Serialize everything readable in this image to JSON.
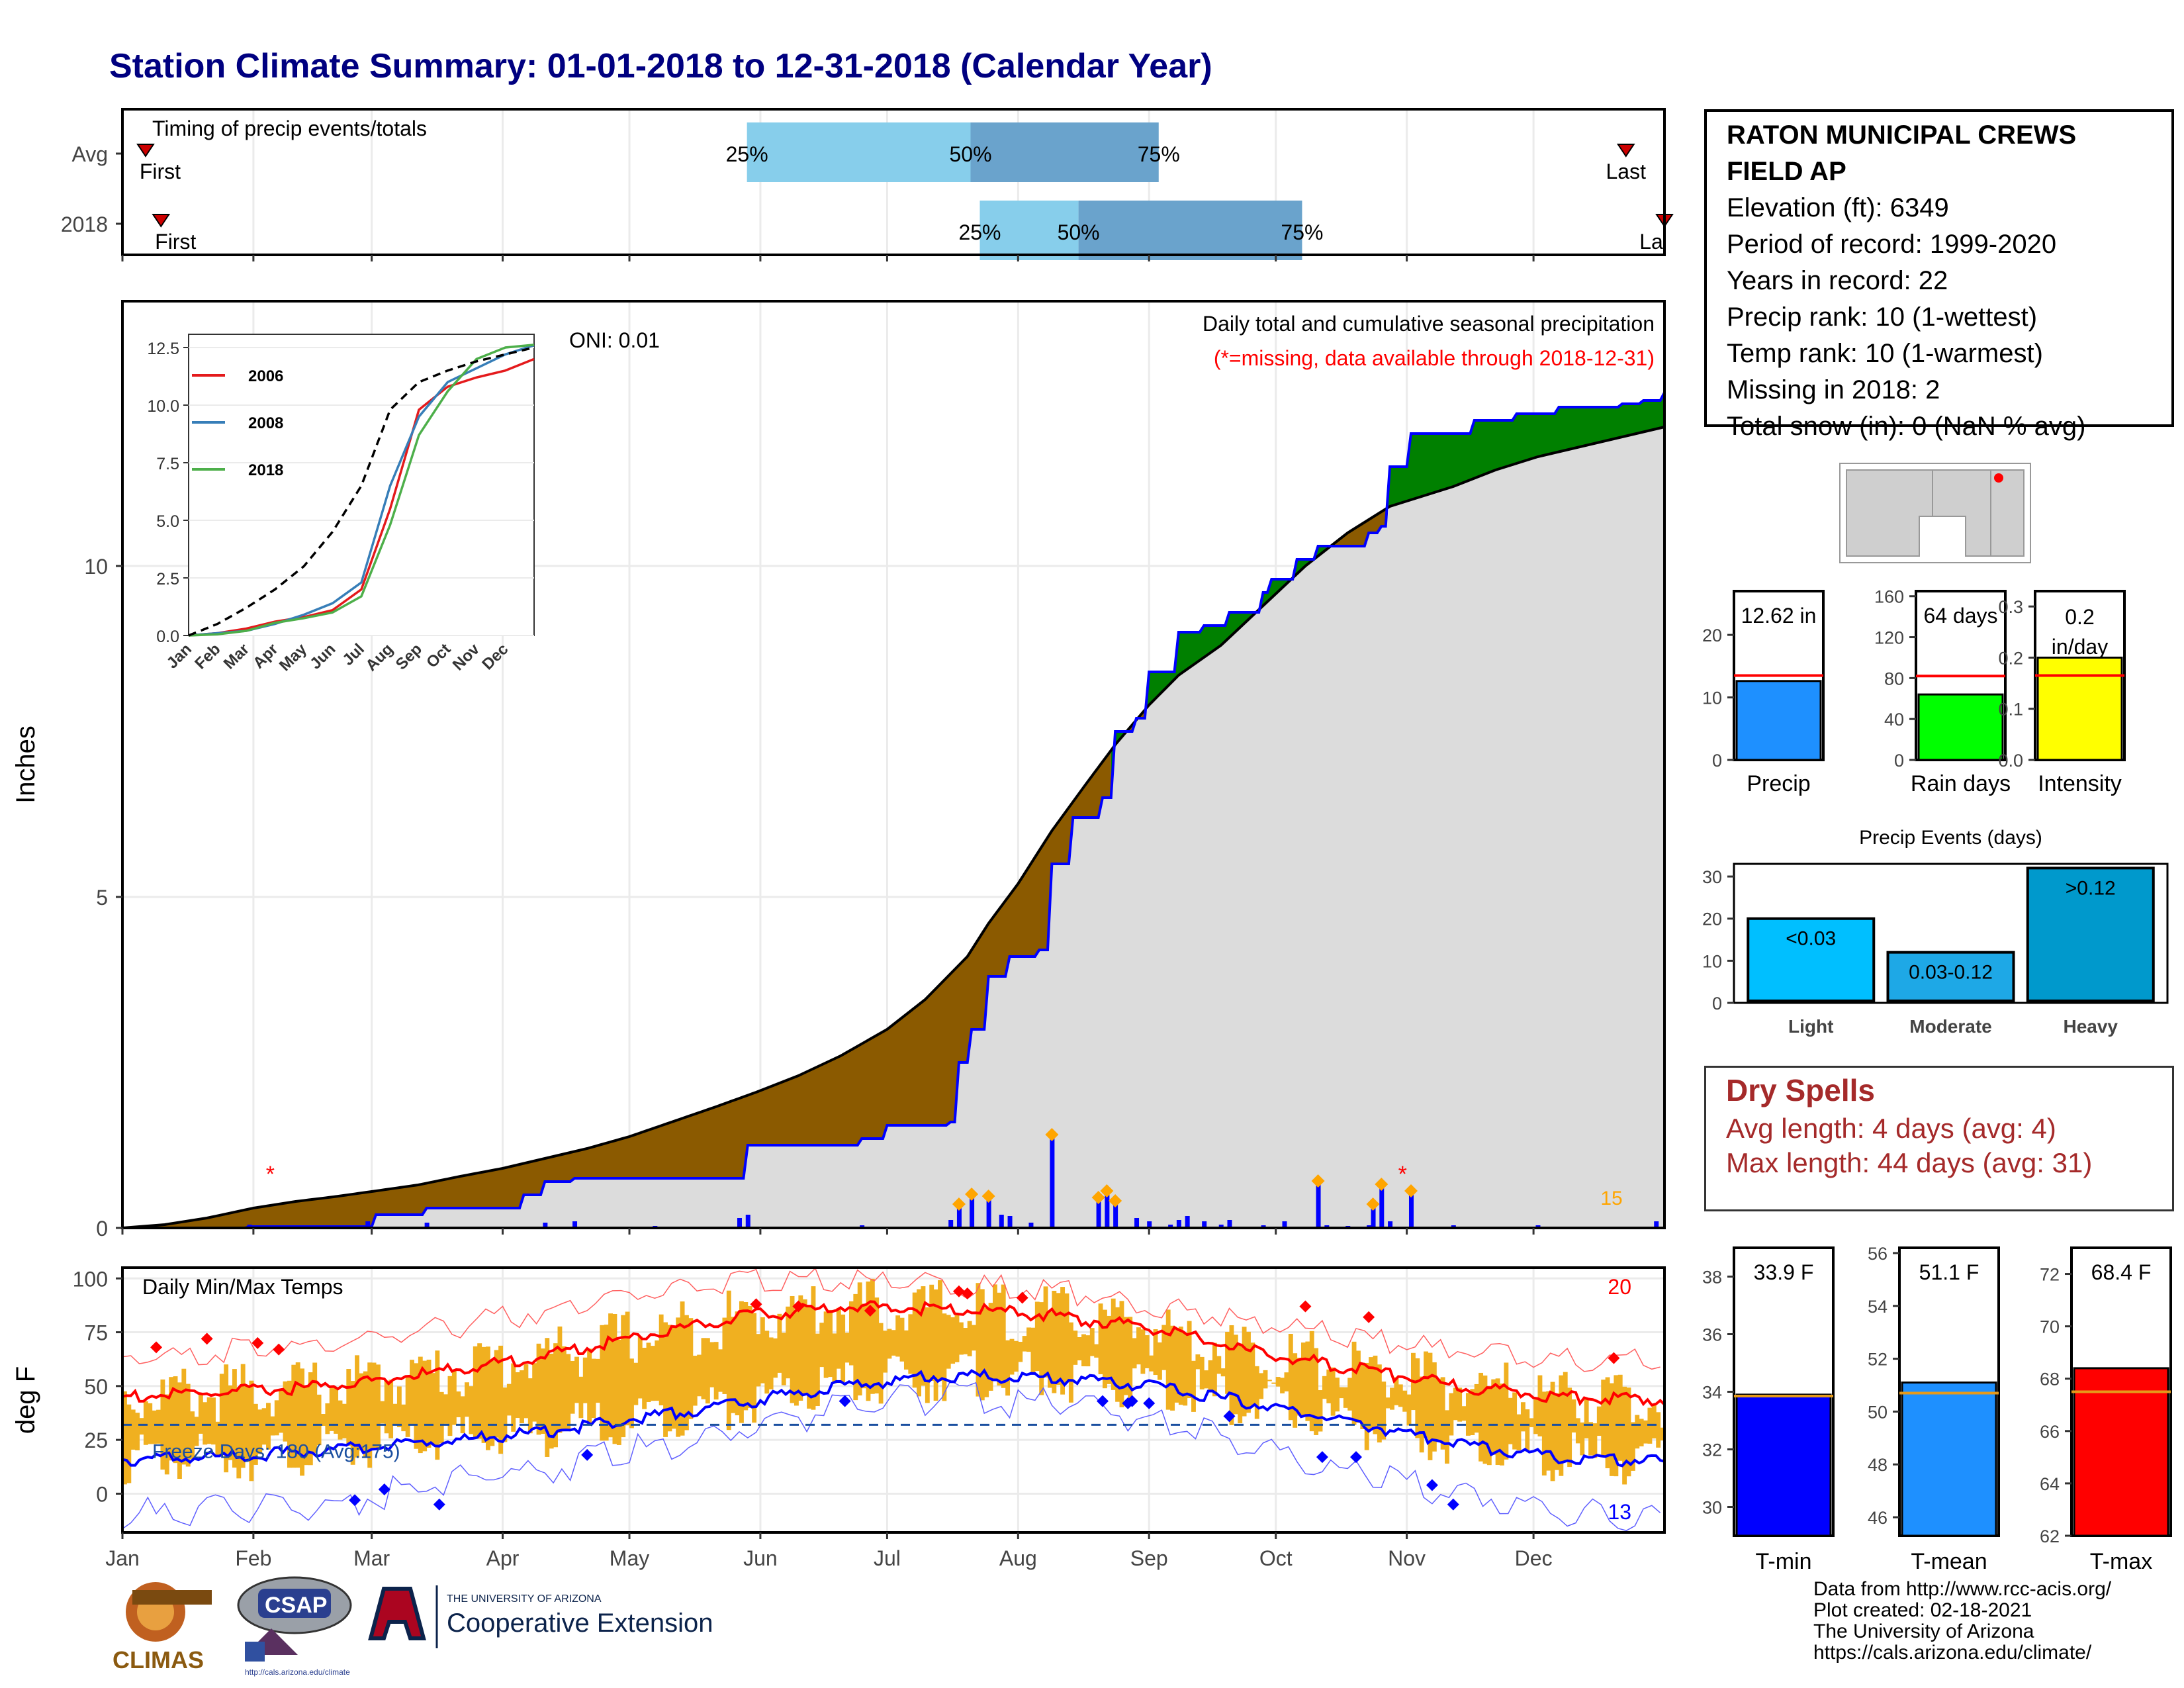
{
  "title": "Station Climate Summary: 01-01-2018 to 12-31-2018 (Calendar Year)",
  "station": {
    "name": "RATON MUNICIPAL CREWS FIELD AP",
    "lines": [
      "Elevation (ft): 6349",
      "Period of record: 1999-2020",
      "Years in record: 22",
      "Precip rank: 10 (1-wettest)",
      "Temp rank: 10 (1-warmest)",
      "Missing in 2018: 2",
      "Total snow (in): 0 (NaN % avg)"
    ]
  },
  "dry_spells": {
    "title": "Dry Spells",
    "avg_length": "Avg length: 4 days (avg: 4)",
    "max_length": "Max length: 44 days (avg: 31)"
  },
  "credits": [
    "Data from http://www.rcc-acis.org/",
    "Plot created: 02-18-2021",
    "The University of Arizona",
    "https://cals.arizona.edu/climate/"
  ],
  "logos": {
    "climas": "CLIMAS",
    "csap": "CSAP",
    "csap_url": "http://cals.arizona.edu/climate",
    "ua_small": "THE UNIVERSITY OF ARIZONA",
    "ua_big": "Cooperative Extension"
  },
  "colors": {
    "title": "#000080",
    "brown": "#8b5a00",
    "green": "#008000",
    "grey": "#dcdcdc",
    "blue": "#0000ff",
    "orange": "#ffa500",
    "red": "#ff0000",
    "light_blue": "#87ceeb",
    "steel_blue": "#6aa3cc",
    "temp_bar": "#f0b020",
    "dry": "#a52a2a"
  },
  "chart_data": [
    {
      "id": "timing",
      "type": "bar",
      "title": "Timing of precip events/totals",
      "rows": [
        {
          "label": "Avg",
          "q25": 0.405,
          "q50": 0.55,
          "q75": 0.672,
          "first": 0.015,
          "last": 0.975,
          "first_label": "First",
          "last_label": "Last"
        },
        {
          "label": "2018",
          "q25": 0.556,
          "q50": 0.62,
          "q75": 0.765,
          "first": 0.025,
          "last": 1.0,
          "first_label": "First",
          "last_label": "La"
        }
      ],
      "quantile_labels": [
        "25%",
        "50%",
        "75%"
      ]
    },
    {
      "id": "precip",
      "type": "area",
      "title": "Daily total and cumulative seasonal precipitation",
      "subtitle": "(*=missing, data available through 2018-12-31)",
      "ylabel": "Inches",
      "ylim": [
        0,
        14
      ],
      "yticks": [
        0,
        5,
        10
      ],
      "oni": "ONI: 0.01",
      "corner_value": "15",
      "avg_cum": [
        [
          0,
          0
        ],
        [
          10,
          0.05
        ],
        [
          20,
          0.15
        ],
        [
          31,
          0.3
        ],
        [
          41,
          0.4
        ],
        [
          50,
          0.47
        ],
        [
          59,
          0.55
        ],
        [
          70,
          0.65
        ],
        [
          80,
          0.78
        ],
        [
          90,
          0.9
        ],
        [
          100,
          1.05
        ],
        [
          110,
          1.2
        ],
        [
          120,
          1.38
        ],
        [
          130,
          1.6
        ],
        [
          140,
          1.82
        ],
        [
          150,
          2.05
        ],
        [
          160,
          2.3
        ],
        [
          170,
          2.6
        ],
        [
          181,
          3.0
        ],
        [
          190,
          3.45
        ],
        [
          200,
          4.1
        ],
        [
          205,
          4.6
        ],
        [
          212,
          5.2
        ],
        [
          220,
          6.0
        ],
        [
          228,
          6.7
        ],
        [
          235,
          7.3
        ],
        [
          243,
          7.9
        ],
        [
          250,
          8.35
        ],
        [
          260,
          8.8
        ],
        [
          270,
          9.4
        ],
        [
          280,
          10.0
        ],
        [
          290,
          10.5
        ],
        [
          300,
          10.9
        ],
        [
          305,
          11.0
        ],
        [
          315,
          11.2
        ],
        [
          325,
          11.45
        ],
        [
          335,
          11.65
        ],
        [
          345,
          11.8
        ],
        [
          355,
          11.95
        ],
        [
          365,
          12.1
        ]
      ],
      "obs_cum": [
        [
          0,
          0
        ],
        [
          30,
          0.02
        ],
        [
          58,
          0.02
        ],
        [
          60,
          0.2
        ],
        [
          70,
          0.2
        ],
        [
          72,
          0.3
        ],
        [
          95,
          0.5
        ],
        [
          100,
          0.7
        ],
        [
          107,
          0.75
        ],
        [
          125,
          0.75
        ],
        [
          146,
          0.75
        ],
        [
          148,
          1.25
        ],
        [
          175,
          1.35
        ],
        [
          181,
          1.55
        ],
        [
          190,
          1.55
        ],
        [
          196,
          1.6
        ],
        [
          198,
          2.5
        ],
        [
          201,
          3.0
        ],
        [
          205,
          3.8
        ],
        [
          210,
          4.1
        ],
        [
          215,
          4.1
        ],
        [
          217,
          4.2
        ],
        [
          220,
          5.5
        ],
        [
          225,
          6.2
        ],
        [
          232,
          6.5
        ],
        [
          235,
          7.5
        ],
        [
          240,
          7.7
        ],
        [
          243,
          8.4
        ],
        [
          250,
          9.0
        ],
        [
          256,
          9.1
        ],
        [
          262,
          9.3
        ],
        [
          270,
          9.6
        ],
        [
          272,
          9.8
        ],
        [
          276,
          9.8
        ],
        [
          278,
          10.1
        ],
        [
          283,
          10.3
        ],
        [
          295,
          10.5
        ],
        [
          298,
          10.6
        ],
        [
          300,
          11.5
        ],
        [
          305,
          12.0
        ],
        [
          315,
          12.0
        ],
        [
          320,
          12.2
        ],
        [
          330,
          12.3
        ],
        [
          340,
          12.4
        ],
        [
          355,
          12.45
        ],
        [
          360,
          12.5
        ],
        [
          365,
          12.62
        ]
      ],
      "daily_bars": [
        [
          30,
          0.05
        ],
        [
          58,
          0.1
        ],
        [
          72,
          0.08
        ],
        [
          100,
          0.08
        ],
        [
          107,
          0.1
        ],
        [
          126,
          0.03
        ],
        [
          146,
          0.15
        ],
        [
          148,
          0.2
        ],
        [
          175,
          0.04
        ],
        [
          196,
          0.12
        ],
        [
          198,
          0.3
        ],
        [
          201,
          0.45
        ],
        [
          205,
          0.42
        ],
        [
          208,
          0.2
        ],
        [
          210,
          0.18
        ],
        [
          215,
          0.08
        ],
        [
          220,
          1.35
        ],
        [
          225,
          0.02
        ],
        [
          231,
          0.4
        ],
        [
          233,
          0.5
        ],
        [
          235,
          0.35
        ],
        [
          240,
          0.15
        ],
        [
          243,
          0.1
        ],
        [
          248,
          0.05
        ],
        [
          250,
          0.12
        ],
        [
          252,
          0.18
        ],
        [
          256,
          0.1
        ],
        [
          260,
          0.05
        ],
        [
          262,
          0.12
        ],
        [
          270,
          0.04
        ],
        [
          275,
          0.1
        ],
        [
          283,
          0.65
        ],
        [
          285,
          0.04
        ],
        [
          290,
          0.03
        ],
        [
          295,
          0.04
        ],
        [
          296,
          0.3
        ],
        [
          298,
          0.6
        ],
        [
          300,
          0.1
        ],
        [
          305,
          0.5
        ],
        [
          315,
          0.04
        ],
        [
          335,
          0.04
        ],
        [
          356,
          0.02
        ],
        [
          363,
          0.1
        ]
      ],
      "missing_markers": [
        [
          35,
          1.0
        ],
        [
          303,
          1.0
        ]
      ]
    },
    {
      "id": "inset",
      "type": "line",
      "ylim": [
        0,
        12.5
      ],
      "yticks": [
        0.0,
        2.5,
        5.0,
        7.5,
        10.0,
        12.5
      ],
      "ytick_labels": [
        "0.0",
        "2.5",
        "5.0",
        "7.5",
        "10.0",
        "12.5"
      ],
      "xticks": [
        "Jan",
        "Feb",
        "Mar",
        "Apr",
        "May",
        "Jun",
        "Jul",
        "Aug",
        "Sep",
        "Oct",
        "Nov",
        "Dec"
      ],
      "series": [
        {
          "name": "2006",
          "color": "#e41a1c",
          "values": [
            0,
            0.1,
            0.3,
            0.6,
            0.8,
            1.1,
            2.0,
            5.5,
            9.8,
            10.8,
            11.2,
            11.5,
            12.0
          ]
        },
        {
          "name": "2008",
          "color": "#377eb8",
          "values": [
            0,
            0.1,
            0.2,
            0.5,
            0.9,
            1.4,
            2.3,
            6.5,
            9.5,
            11.0,
            11.6,
            12.2,
            12.6
          ]
        },
        {
          "name": "2018",
          "color": "#4daf4a",
          "values": [
            0,
            0.05,
            0.2,
            0.55,
            0.75,
            1.0,
            1.7,
            4.8,
            8.7,
            10.6,
            12.0,
            12.5,
            12.62
          ]
        },
        {
          "color": "#000000",
          "dashed": true,
          "values": [
            0,
            0.5,
            1.2,
            2.0,
            3.0,
            4.5,
            6.5,
            9.8,
            11.0,
            11.5,
            11.9,
            12.2,
            12.5
          ]
        }
      ]
    },
    {
      "id": "temps",
      "type": "bar",
      "title": "Daily Min/Max Temps",
      "ylabel": "deg F",
      "ylim": [
        -18,
        105
      ],
      "yticks": [
        0,
        25,
        50,
        75,
        100
      ],
      "freeze_text": "Freeze Days: 180 (Avg:175)",
      "freeze_line": 32,
      "corner_top": "20",
      "corner_bottom": "13",
      "months": [
        "Jan",
        "Feb",
        "Mar",
        "Apr",
        "May",
        "Jun",
        "Jul",
        "Aug",
        "Sep",
        "Oct",
        "Nov",
        "Dec"
      ],
      "avg_max": [
        45,
        47,
        50,
        56,
        63,
        73,
        82,
        87,
        86,
        83,
        77,
        66,
        58,
        50,
        45,
        44
      ],
      "avg_min": [
        16,
        17,
        20,
        24,
        28,
        35,
        42,
        50,
        55,
        54,
        50,
        42,
        33,
        23,
        17,
        15
      ],
      "rec_max": [
        62,
        66,
        70,
        76,
        84,
        92,
        98,
        99,
        97,
        95,
        88,
        80,
        72,
        66,
        62,
        62
      ],
      "rec_min": [
        -10,
        -8,
        -5,
        5,
        10,
        20,
        30,
        40,
        45,
        42,
        35,
        22,
        10,
        0,
        -8,
        -10
      ],
      "extreme_highs": [
        [
          8,
          68
        ],
        [
          20,
          72
        ],
        [
          32,
          70
        ],
        [
          37,
          67
        ],
        [
          150,
          88
        ],
        [
          160,
          87
        ],
        [
          177,
          85
        ],
        [
          198,
          94
        ],
        [
          200,
          93
        ],
        [
          213,
          91
        ],
        [
          280,
          87
        ],
        [
          295,
          82
        ],
        [
          353,
          63
        ]
      ],
      "extreme_lows": [
        [
          55,
          -3
        ],
        [
          62,
          2
        ],
        [
          75,
          -5
        ],
        [
          110,
          18
        ],
        [
          171,
          43
        ],
        [
          232,
          43
        ],
        [
          238,
          42
        ],
        [
          239,
          43
        ],
        [
          243,
          42
        ],
        [
          262,
          36
        ],
        [
          284,
          17
        ],
        [
          292,
          17
        ],
        [
          310,
          4
        ],
        [
          315,
          -5
        ]
      ]
    },
    {
      "id": "totals",
      "type": "bar",
      "panels": [
        {
          "label": "Precip",
          "value": 12.62,
          "avg": 13.5,
          "ylim": [
            0,
            27
          ],
          "yticks": [
            0,
            10,
            20
          ],
          "color": "#1e90ff",
          "value_text": "12.62 in"
        },
        {
          "label": "Rain days",
          "value": 64,
          "avg": 82,
          "ylim": [
            0,
            165
          ],
          "yticks": [
            0,
            40,
            80,
            120,
            160
          ],
          "color": "#00ff00",
          "value_text": "64 days"
        },
        {
          "label": "Intensity",
          "value": 0.2,
          "avg": 0.165,
          "ylim": [
            0,
            0.33
          ],
          "yticks": [
            0.0,
            0.1,
            0.2,
            0.3
          ],
          "ytick_labels": [
            "0.0",
            "0.1",
            "0.2",
            "0.3"
          ],
          "color": "#ffff00",
          "value_text": "0.2 in/day"
        }
      ]
    },
    {
      "id": "events",
      "type": "bar",
      "title": "Precip Events (days)",
      "categories": [
        "Light",
        "Moderate",
        "Heavy"
      ],
      "labels": [
        "<0.03",
        "0.03-0.12",
        ">0.12"
      ],
      "values": [
        20,
        12,
        32
      ],
      "colors": [
        "#00bfff",
        "#1ea8e6",
        "#0099cc"
      ],
      "ylim": [
        0,
        33
      ],
      "yticks": [
        0,
        10,
        20,
        30
      ]
    },
    {
      "id": "temp_totals",
      "type": "bar",
      "panels": [
        {
          "label": "T-min",
          "value": 33.9,
          "avg": 33.85,
          "ylim": [
            29,
            39
          ],
          "yticks": [
            30,
            32,
            34,
            36,
            38
          ],
          "color": "#0000ff",
          "value_text": "33.9 F"
        },
        {
          "label": "T-mean",
          "value": 51.1,
          "avg": 50.7,
          "ylim": [
            45.3,
            56.2
          ],
          "yticks": [
            46,
            48,
            50,
            52,
            54,
            56
          ],
          "color": "#1e90ff",
          "value_text": "51.1 F"
        },
        {
          "label": "T-max",
          "value": 68.4,
          "avg": 67.5,
          "ylim": [
            62,
            73
          ],
          "yticks": [
            62,
            64,
            66,
            68,
            70,
            72
          ],
          "color": "#ff0000",
          "value_text": "68.4 F"
        }
      ]
    }
  ]
}
